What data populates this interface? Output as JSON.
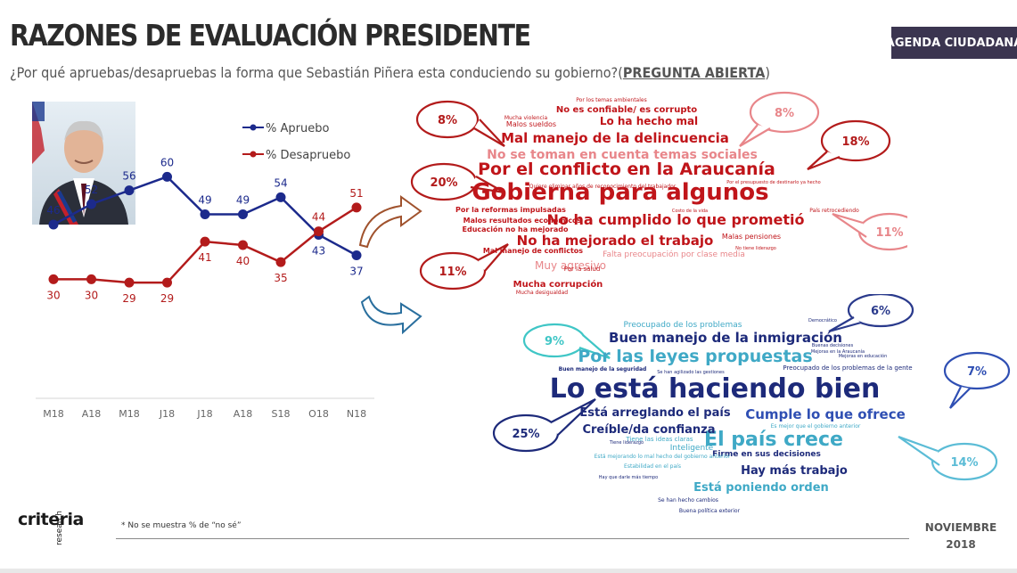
{
  "title": "RAZONES DE EVALUACIÓN PRESIDENTE",
  "subtitle": {
    "question": "¿Por qué apruebas/desapruebas la forma que Sebastián Piñera esta conduciendo su gobierno?(",
    "tag": "PREGUNTA ABIERTA",
    "close": ")"
  },
  "brand_badge": "AGENDA CIUDADANA",
  "footnote": "* No se muestra % de “no sé”",
  "date_line1": "NOVIEMBRE",
  "date_line2": "2018",
  "logo": "criteria",
  "logo_sub": "research",
  "chart_data": {
    "type": "line",
    "categories": [
      "M18",
      "A18",
      "M18",
      "J18",
      "J18",
      "A18",
      "S18",
      "O18",
      "N18"
    ],
    "series": [
      {
        "name": "% Apruebo",
        "values": [
          46,
          52,
          56,
          60,
          49,
          49,
          54,
          43,
          37
        ],
        "color": "#1c2a8c"
      },
      {
        "name": "% Desapruebo",
        "values": [
          30,
          30,
          29,
          29,
          41,
          40,
          35,
          44,
          51
        ],
        "color": "#b31b1b"
      }
    ],
    "ylim": [
      20,
      65
    ],
    "grid": false,
    "legend": "top-right"
  },
  "wordcloud_negative": {
    "color": "#c0151a",
    "words": [
      {
        "text": "Gobierna para algunos",
        "size": 26,
        "weight": "bold"
      },
      {
        "text": "Por el conflicto en la Araucanía",
        "size": 19,
        "weight": "bold"
      },
      {
        "text": "No ha cumplido lo que prometió",
        "size": 16,
        "weight": "bold"
      },
      {
        "text": "No ha mejorado el trabajo",
        "size": 15,
        "weight": "bold"
      },
      {
        "text": "Mal manejo de la delincuencia",
        "size": 15,
        "weight": "bold"
      },
      {
        "text": "No se toman en cuenta temas sociales",
        "size": 14,
        "weight": "bold",
        "color": "#e8868a"
      },
      {
        "text": "Lo ha hecho mal",
        "size": 12,
        "weight": "bold"
      },
      {
        "text": "Muy agresivo",
        "size": 12,
        "weight": "normal",
        "color": "#e8868a"
      },
      {
        "text": "No es confiable/ es corrupto",
        "size": 10,
        "weight": "bold"
      },
      {
        "text": "Mucha corrupción",
        "size": 10,
        "weight": "bold"
      },
      {
        "text": "Malos sueldos",
        "size": 8,
        "weight": "normal"
      },
      {
        "text": "Por la reformas impulsadas",
        "size": 8,
        "weight": "bold"
      },
      {
        "text": "Malos resultados económicos",
        "size": 8,
        "weight": "bold"
      },
      {
        "text": "Educación no ha mejorado",
        "size": 8,
        "weight": "bold"
      },
      {
        "text": "Mal manejo de conflictos",
        "size": 8,
        "weight": "bold"
      },
      {
        "text": "Falta preocupación por clase media",
        "size": 9,
        "weight": "normal",
        "color": "#e8868a"
      },
      {
        "text": "Malas pensiones",
        "size": 8,
        "weight": "normal"
      },
      {
        "text": "Por la salud",
        "size": 7,
        "weight": "normal"
      },
      {
        "text": "Mucha desigualdad",
        "size": 6,
        "weight": "normal"
      },
      {
        "text": "Mucha violencia",
        "size": 6,
        "weight": "normal"
      },
      {
        "text": "Por los temas ambientales",
        "size": 6,
        "weight": "normal"
      },
      {
        "text": "Quiere eliminar años de reconocimiento del trabajador",
        "size": 6,
        "weight": "normal"
      },
      {
        "text": "País retrocediendo",
        "size": 6,
        "weight": "normal"
      },
      {
        "text": "Costo de la vida",
        "size": 5,
        "weight": "normal"
      },
      {
        "text": "Por el presupuesto de destinarlo ya hecho",
        "size": 5,
        "weight": "normal"
      },
      {
        "text": "No tiene liderazgo",
        "size": 5,
        "weight": "normal"
      }
    ],
    "bubbles": [
      "8%",
      "8%",
      "18%",
      "20%",
      "11%",
      "11%"
    ]
  },
  "wordcloud_positive": {
    "color": "#1d2a7a",
    "words": [
      {
        "text": "Lo está haciendo bien",
        "size": 30,
        "weight": "bold"
      },
      {
        "text": "El país crece",
        "size": 22,
        "weight": "bold",
        "color": "#3fa9c6"
      },
      {
        "text": "Por las leyes propuestas",
        "size": 19,
        "weight": "bold",
        "color": "#3fa9c6"
      },
      {
        "text": "Buen manejo de la inmigración",
        "size": 15,
        "weight": "bold"
      },
      {
        "text": "Cumple lo que ofrece",
        "size": 15,
        "weight": "bold",
        "color": "#2f4fb3"
      },
      {
        "text": "Está arreglando el país",
        "size": 13,
        "weight": "bold"
      },
      {
        "text": "Creíble/da confianza",
        "size": 13,
        "weight": "bold"
      },
      {
        "text": "Hay más trabajo",
        "size": 13,
        "weight": "bold"
      },
      {
        "text": "Está poniendo orden",
        "size": 13,
        "weight": "bold",
        "color": "#3fa9c6"
      },
      {
        "text": "Preocupado de los problemas",
        "size": 9,
        "weight": "normal",
        "color": "#3fa9c6"
      },
      {
        "text": "Firme en sus decisiones",
        "size": 9,
        "weight": "bold"
      },
      {
        "text": "Inteligente",
        "size": 9,
        "weight": "normal",
        "color": "#3fa9c6"
      },
      {
        "text": "Buen manejo de la seguridad",
        "size": 6,
        "weight": "bold"
      },
      {
        "text": "Preocupado de los problemas de la gente",
        "size": 7,
        "weight": "normal"
      },
      {
        "text": "Tiene las ideas claras",
        "size": 7,
        "weight": "normal",
        "color": "#3fa9c6"
      },
      {
        "text": "Está mejorando lo mal hecho del gobierno anterior",
        "size": 6,
        "weight": "normal",
        "color": "#3fa9c6"
      },
      {
        "text": "Estabilidad en el país",
        "size": 6,
        "weight": "normal",
        "color": "#3fa9c6"
      },
      {
        "text": "Es mejor que el gobierno anterior",
        "size": 6,
        "weight": "normal",
        "color": "#3fa9c6"
      },
      {
        "text": "Se han hecho cambios",
        "size": 6,
        "weight": "normal"
      },
      {
        "text": "Buena política exterior",
        "size": 6,
        "weight": "normal"
      },
      {
        "text": "Hay que darle más tiempo",
        "size": 5,
        "weight": "normal"
      },
      {
        "text": "Democrático",
        "size": 5,
        "weight": "normal"
      },
      {
        "text": "Se han agilizado las gestiones",
        "size": 5,
        "weight": "normal"
      },
      {
        "text": "Mejoras en la Araucanía",
        "size": 5,
        "weight": "normal"
      },
      {
        "text": "Buenas decisiones",
        "size": 5,
        "weight": "normal"
      },
      {
        "text": "Mejoras en educación",
        "size": 5,
        "weight": "normal"
      },
      {
        "text": "Tiene liderazgo",
        "size": 5,
        "weight": "normal"
      }
    ],
    "bubbles": [
      "6%",
      "9%",
      "7%",
      "25%",
      "14%"
    ]
  }
}
